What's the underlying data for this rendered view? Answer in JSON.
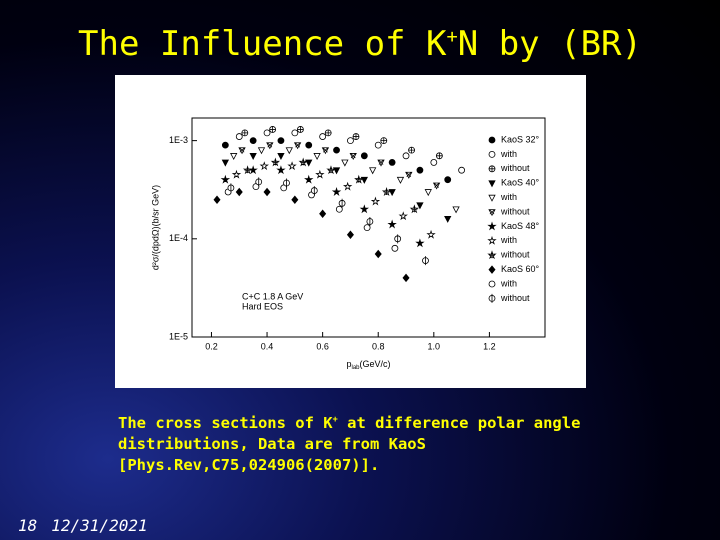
{
  "slide": {
    "title": {
      "before": "The Influence of K",
      "sup": "+",
      "after": "N by (BR)"
    },
    "caption": {
      "before": "The cross sections of  K",
      "sup": "+",
      "after": " at difference polar angle distributions, Data are from KaoS [Phys.Rev,C75,024906(2007)]."
    },
    "footer": {
      "number": "18",
      "date": "12/31/2021"
    }
  },
  "chart_data": {
    "type": "scatter",
    "ylabel": "d²σ/(dpdΩ)(b/sr GeV)",
    "xlabel": {
      "main": "p",
      "sub": "lab",
      "unit": "(GeV/c)"
    },
    "annotations": [
      "C+C 1.8 A GeV",
      "Hard EOS"
    ],
    "log_y": true,
    "legend": "upper right",
    "xlim": [
      0.13,
      1.4
    ],
    "ylim": [
      1e-05,
      0.0017
    ],
    "xticks": [
      0.2,
      0.4,
      0.6,
      0.8,
      {
        "value": 1.0,
        "label": "1.0"
      },
      1.2
    ],
    "yticks": [
      {
        "value": 1e-05,
        "label": "1E-5"
      },
      {
        "value": 0.0001,
        "label": "1E-4"
      },
      {
        "value": 0.001,
        "label": "1E-3"
      }
    ],
    "series": [
      {
        "name": "KaoS 32°",
        "marker": "circle",
        "color": "#000000",
        "x": [
          0.25,
          0.35,
          0.45,
          0.55,
          0.65,
          0.75,
          0.85,
          0.95,
          1.05
        ],
        "values": [
          0.0009,
          0.001,
          0.001,
          0.0009,
          0.0008,
          0.0007,
          0.0006,
          0.0005,
          0.0004
        ]
      },
      {
        "name": "with",
        "marker": "circle-open",
        "color": "#000000",
        "x": [
          0.3,
          0.4,
          0.5,
          0.6,
          0.7,
          0.8,
          0.9,
          1.0,
          1.1
        ],
        "values": [
          0.0011,
          0.0012,
          0.0012,
          0.0011,
          0.001,
          0.0009,
          0.0007,
          0.0006,
          0.0005
        ]
      },
      {
        "name": "without",
        "marker": "circle-plus",
        "color": "#000000",
        "x": [
          0.32,
          0.42,
          0.52,
          0.62,
          0.72,
          0.82,
          0.92,
          1.02
        ],
        "values": [
          0.0012,
          0.0013,
          0.0013,
          0.0012,
          0.0011,
          0.001,
          0.0008,
          0.0007
        ]
      },
      {
        "name": "KaoS 40°",
        "marker": "tri-down",
        "color": "#000000",
        "x": [
          0.25,
          0.35,
          0.45,
          0.55,
          0.65,
          0.75,
          0.85,
          0.95,
          1.05
        ],
        "values": [
          0.0006,
          0.0007,
          0.0007,
          0.0006,
          0.0005,
          0.0004,
          0.0003,
          0.00022,
          0.00016
        ]
      },
      {
        "name": "with",
        "marker": "tri-down-open",
        "color": "#000000",
        "x": [
          0.28,
          0.38,
          0.48,
          0.58,
          0.68,
          0.78,
          0.88,
          0.98,
          1.08
        ],
        "values": [
          0.0007,
          0.0008,
          0.0008,
          0.0007,
          0.0006,
          0.0005,
          0.0004,
          0.0003,
          0.0002
        ]
      },
      {
        "name": "without",
        "marker": "tri-down-cross",
        "color": "#000000",
        "x": [
          0.31,
          0.41,
          0.51,
          0.61,
          0.71,
          0.81,
          0.91,
          1.01
        ],
        "values": [
          0.0008,
          0.0009,
          0.0009,
          0.0008,
          0.0007,
          0.0006,
          0.00045,
          0.00035
        ]
      },
      {
        "name": "KaoS 48°",
        "marker": "star",
        "color": "#000000",
        "x": [
          0.25,
          0.35,
          0.45,
          0.55,
          0.65,
          0.75,
          0.85,
          0.95
        ],
        "values": [
          0.0004,
          0.0005,
          0.0005,
          0.0004,
          0.0003,
          0.0002,
          0.00014,
          9e-05
        ]
      },
      {
        "name": "with",
        "marker": "star-open",
        "color": "#000000",
        "x": [
          0.29,
          0.39,
          0.49,
          0.59,
          0.69,
          0.79,
          0.89,
          0.99
        ],
        "values": [
          0.00045,
          0.00055,
          0.00055,
          0.00045,
          0.00034,
          0.00024,
          0.00017,
          0.00011
        ]
      },
      {
        "name": "without",
        "marker": "star-cross",
        "color": "#000000",
        "x": [
          0.33,
          0.43,
          0.53,
          0.63,
          0.73,
          0.83,
          0.93
        ],
        "values": [
          0.0005,
          0.0006,
          0.0006,
          0.0005,
          0.0004,
          0.0003,
          0.0002
        ]
      },
      {
        "name": "KaoS 60°",
        "marker": "diamond",
        "color": "#000000",
        "x": [
          0.22,
          0.3,
          0.4,
          0.5,
          0.6,
          0.7,
          0.8,
          0.9
        ],
        "values": [
          0.00025,
          0.0003,
          0.0003,
          0.00025,
          0.00018,
          0.00011,
          7e-05,
          4e-05
        ]
      },
      {
        "name": "with",
        "marker": "circle-open",
        "color": "#000000",
        "x": [
          0.26,
          0.36,
          0.46,
          0.56,
          0.66,
          0.76,
          0.86
        ],
        "values": [
          0.0003,
          0.00034,
          0.00033,
          0.00028,
          0.0002,
          0.00013,
          8e-05
        ]
      },
      {
        "name": "without",
        "marker": "circle-bar",
        "color": "#000000",
        "x": [
          0.27,
          0.37,
          0.47,
          0.57,
          0.67,
          0.77,
          0.87,
          0.97
        ],
        "values": [
          0.00033,
          0.00038,
          0.00037,
          0.00031,
          0.00023,
          0.00015,
          0.0001,
          6e-05
        ]
      }
    ]
  }
}
